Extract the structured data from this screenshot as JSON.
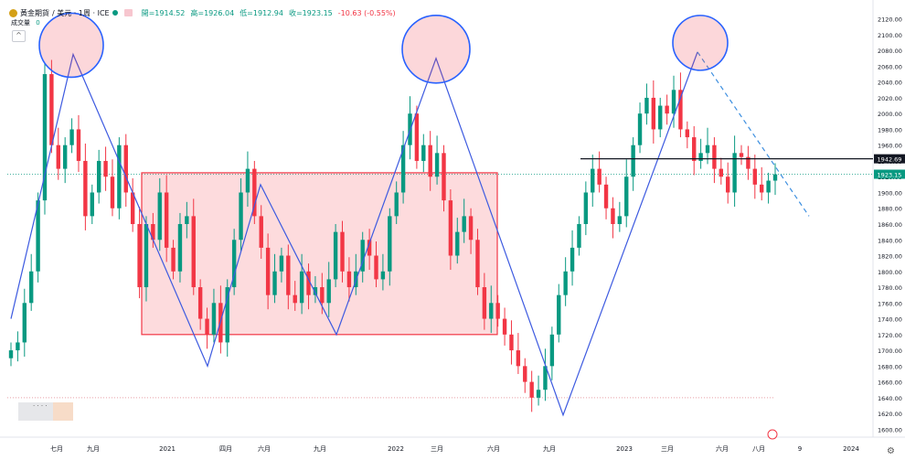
{
  "header": {
    "symbol_name": "黃金期貨",
    "symbol_meta": "/ 美元 · 1周 · ICE",
    "open_label": "開=1914.52",
    "high_label": "高=1926.04",
    "low_label": "低=1912.94",
    "close_label": "收=1923.15",
    "change_label": "-10.63 (-0.55%)",
    "volume_label": "成交量",
    "volume_value": "0",
    "colors": {
      "up": "#089981",
      "down": "#f23645",
      "pattern": "#2962ff"
    }
  },
  "mini_panel": {
    "label": "· · · ·"
  },
  "chart_data": {
    "type": "candlestick",
    "title": "",
    "xlabel": "",
    "ylabel": "",
    "ylim": [
      1590,
      2130
    ],
    "y_ticks": [
      1600,
      1620,
      1640,
      1660,
      1680,
      1700,
      1720,
      1740,
      1760,
      1780,
      1800,
      1820,
      1840,
      1860,
      1880,
      1900,
      1920,
      1940,
      1960,
      1980,
      2000,
      2020,
      2040,
      2060,
      2080,
      2100,
      2120
    ],
    "x_tick_labels": [
      "七月",
      "九月",
      "2021",
      "四月",
      "六月",
      "九月",
      "2022",
      "三月",
      "六月",
      "九月",
      "2023",
      "三月",
      "六月",
      "八月",
      "9",
      "2024"
    ],
    "current_price": {
      "label": "1923.15",
      "value": 1923.15
    },
    "marked_level": {
      "label": "1942.69",
      "value": 1942.69
    },
    "lower_line": 1640,
    "range_box": {
      "top": 1925,
      "bottom": 1720
    },
    "pattern_points": [
      1740,
      2075,
      1680,
      1910,
      1720,
      2070,
      1618,
      2078
    ],
    "projection": [
      2078,
      1870
    ],
    "peak_circles": [
      2075,
      2070,
      2078
    ],
    "candles_close": [
      1700,
      1710,
      1760,
      1800,
      1890,
      2050,
      1960,
      1930,
      1960,
      1980,
      1940,
      1870,
      1900,
      1940,
      1920,
      1880,
      1960,
      1900,
      1860,
      1780,
      1860,
      1840,
      1900,
      1830,
      1800,
      1860,
      1870,
      1780,
      1740,
      1720,
      1760,
      1710,
      1780,
      1840,
      1900,
      1930,
      1870,
      1830,
      1770,
      1800,
      1820,
      1770,
      1760,
      1800,
      1770,
      1780,
      1760,
      1790,
      1850,
      1800,
      1780,
      1800,
      1840,
      1820,
      1790,
      1800,
      1870,
      1900,
      1960,
      2000,
      1940,
      1960,
      1920,
      1950,
      1890,
      1820,
      1850,
      1870,
      1840,
      1780,
      1740,
      1760,
      1740,
      1720,
      1700,
      1680,
      1660,
      1640,
      1650,
      1680,
      1720,
      1770,
      1800,
      1830,
      1860,
      1900,
      1930,
      1910,
      1880,
      1860,
      1870,
      1920,
      1960,
      2000,
      2020,
      1980,
      2010,
      2000,
      2030,
      1980,
      1970,
      1940,
      1950,
      1960,
      1930,
      1920,
      1900,
      1950,
      1945,
      1930,
      1910,
      1900,
      1915,
      1923
    ]
  }
}
